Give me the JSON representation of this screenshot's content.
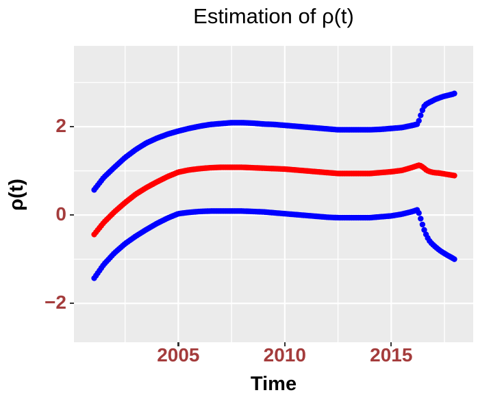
{
  "colors": {
    "panel_background": "#EBEBEB",
    "gridline": "#FFFFFF",
    "tick_mark": "#333333",
    "tick_label_text": "#A43C3C",
    "title_text": "#000000",
    "band_color": "#0000FF",
    "estimate_color": "#FF0000"
  },
  "axes": {
    "x": {
      "ticks": [
        {
          "value": 2005,
          "label": "2005"
        },
        {
          "value": 2010,
          "label": "2010"
        },
        {
          "value": 2015,
          "label": "2015"
        }
      ],
      "minor": [
        2002.5,
        2007.5,
        2012.5,
        2017.5
      ]
    },
    "y": {
      "ticks": [
        {
          "value": 2,
          "label": "2"
        },
        {
          "value": 0,
          "label": "0"
        },
        {
          "value": -2,
          "label": "−2"
        }
      ],
      "minor": [
        3,
        1,
        -1
      ]
    }
  },
  "chart_data": {
    "type": "scatter",
    "title": "Estimation of ρ(t)",
    "xlabel": "Time",
    "ylabel": "ρ(t)",
    "x_domain": [
      2000.1,
      2018.85
    ],
    "y_domain": [
      -2.88,
      3.83
    ],
    "grid": true,
    "legend": "none",
    "point_radius": 4.2,
    "sample_step": 0.08333,
    "series": [
      {
        "name": "upper-confidence-band",
        "color": "#0000FF",
        "points": [
          [
            2001.05,
            0.57
          ],
          [
            2001.5,
            0.85
          ],
          [
            2002,
            1.08
          ],
          [
            2002.5,
            1.3
          ],
          [
            2003,
            1.48
          ],
          [
            2003.5,
            1.63
          ],
          [
            2004,
            1.74
          ],
          [
            2004.5,
            1.83
          ],
          [
            2005,
            1.9
          ],
          [
            2005.5,
            1.96
          ],
          [
            2006,
            2.01
          ],
          [
            2006.5,
            2.05
          ],
          [
            2007,
            2.07
          ],
          [
            2007.5,
            2.09
          ],
          [
            2008,
            2.09
          ],
          [
            2008.5,
            2.08
          ],
          [
            2009,
            2.06
          ],
          [
            2009.5,
            2.05
          ],
          [
            2010,
            2.03
          ],
          [
            2010.5,
            2.01
          ],
          [
            2011,
            1.99
          ],
          [
            2011.5,
            1.97
          ],
          [
            2012,
            1.95
          ],
          [
            2012.5,
            1.93
          ],
          [
            2013,
            1.93
          ],
          [
            2013.5,
            1.93
          ],
          [
            2014,
            1.93
          ],
          [
            2014.5,
            1.94
          ],
          [
            2015,
            1.96
          ],
          [
            2015.5,
            1.98
          ],
          [
            2016,
            2.03
          ],
          [
            2016.25,
            2.06
          ],
          [
            2016.33,
            2.18
          ],
          [
            2016.42,
            2.31
          ],
          [
            2016.5,
            2.42
          ],
          [
            2016.58,
            2.49
          ],
          [
            2016.75,
            2.54
          ],
          [
            2016.92,
            2.58
          ],
          [
            2017.08,
            2.62
          ],
          [
            2017.25,
            2.65
          ],
          [
            2017.42,
            2.68
          ],
          [
            2017.58,
            2.7
          ],
          [
            2017.75,
            2.72
          ],
          [
            2017.92,
            2.74
          ],
          [
            2018,
            2.76
          ]
        ]
      },
      {
        "name": "lower-confidence-band",
        "color": "#0000FF",
        "points": [
          [
            2001.05,
            -1.43
          ],
          [
            2001.5,
            -1.12
          ],
          [
            2002,
            -0.86
          ],
          [
            2002.5,
            -0.65
          ],
          [
            2003,
            -0.48
          ],
          [
            2003.5,
            -0.33
          ],
          [
            2004,
            -0.19
          ],
          [
            2004.5,
            -0.07
          ],
          [
            2005,
            0.03
          ],
          [
            2005.5,
            0.06
          ],
          [
            2006,
            0.08
          ],
          [
            2006.5,
            0.09
          ],
          [
            2007,
            0.09
          ],
          [
            2007.5,
            0.09
          ],
          [
            2008,
            0.09
          ],
          [
            2008.5,
            0.08
          ],
          [
            2009,
            0.07
          ],
          [
            2009.5,
            0.05
          ],
          [
            2010,
            0.03
          ],
          [
            2010.5,
            0.01
          ],
          [
            2011,
            -0.01
          ],
          [
            2011.5,
            -0.03
          ],
          [
            2012,
            -0.05
          ],
          [
            2012.5,
            -0.06
          ],
          [
            2013,
            -0.06
          ],
          [
            2013.5,
            -0.06
          ],
          [
            2014,
            -0.06
          ],
          [
            2014.5,
            -0.04
          ],
          [
            2015,
            -0.02
          ],
          [
            2015.5,
            0.02
          ],
          [
            2016,
            0.08
          ],
          [
            2016.25,
            0.12
          ],
          [
            2016.33,
            0.0
          ],
          [
            2016.42,
            -0.14
          ],
          [
            2016.5,
            -0.27
          ],
          [
            2016.58,
            -0.38
          ],
          [
            2016.67,
            -0.48
          ],
          [
            2016.75,
            -0.55
          ],
          [
            2016.83,
            -0.61
          ],
          [
            2017,
            -0.69
          ],
          [
            2017.17,
            -0.76
          ],
          [
            2017.33,
            -0.82
          ],
          [
            2017.5,
            -0.87
          ],
          [
            2017.67,
            -0.92
          ],
          [
            2017.83,
            -0.96
          ],
          [
            2018,
            -1.01
          ]
        ]
      },
      {
        "name": "rho-estimate",
        "color": "#FF0000",
        "points": [
          [
            2001.05,
            -0.44
          ],
          [
            2001.5,
            -0.17
          ],
          [
            2002,
            0.07
          ],
          [
            2002.5,
            0.28
          ],
          [
            2003,
            0.47
          ],
          [
            2003.5,
            0.62
          ],
          [
            2004,
            0.75
          ],
          [
            2004.5,
            0.87
          ],
          [
            2005,
            0.97
          ],
          [
            2005.5,
            1.02
          ],
          [
            2006,
            1.05
          ],
          [
            2006.5,
            1.07
          ],
          [
            2007,
            1.08
          ],
          [
            2007.5,
            1.08
          ],
          [
            2008,
            1.08
          ],
          [
            2008.5,
            1.07
          ],
          [
            2009,
            1.06
          ],
          [
            2009.5,
            1.05
          ],
          [
            2010,
            1.04
          ],
          [
            2010.5,
            1.02
          ],
          [
            2011,
            1.0
          ],
          [
            2011.5,
            0.98
          ],
          [
            2012,
            0.96
          ],
          [
            2012.5,
            0.94
          ],
          [
            2013,
            0.94
          ],
          [
            2013.5,
            0.94
          ],
          [
            2014,
            0.94
          ],
          [
            2014.5,
            0.96
          ],
          [
            2015,
            0.98
          ],
          [
            2015.5,
            1.01
          ],
          [
            2016,
            1.08
          ],
          [
            2016.25,
            1.12
          ],
          [
            2016.33,
            1.13
          ],
          [
            2016.5,
            1.08
          ],
          [
            2016.67,
            1.01
          ],
          [
            2016.83,
            0.98
          ],
          [
            2017,
            0.96
          ],
          [
            2017.25,
            0.95
          ],
          [
            2017.5,
            0.93
          ],
          [
            2017.75,
            0.91
          ],
          [
            2018,
            0.89
          ]
        ]
      }
    ]
  }
}
